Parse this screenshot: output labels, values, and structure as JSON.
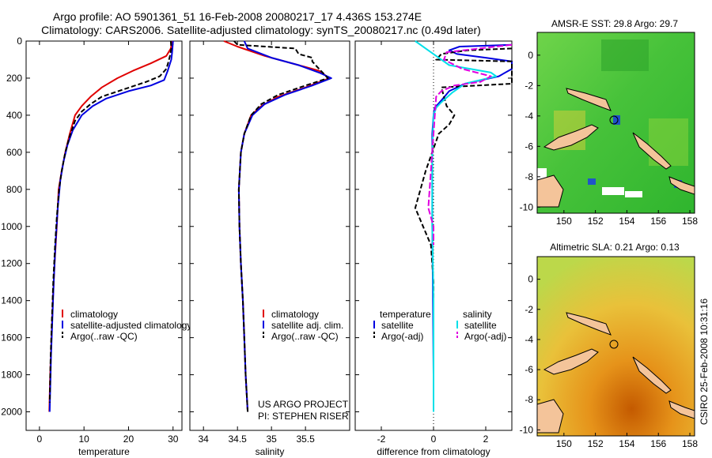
{
  "header": {
    "line1": "Argo profile: AO 5901361_51 16-Feb-2008 20080217_17 4.436S 153.274E",
    "line2": "Climatology: CARS2006. Satellite-adjusted climatology: synTS_20080217.nc (0.49d later)"
  },
  "side_label": "CSIRO 25-Feb-2008 10:31:16",
  "project": {
    "line1": "US ARGO PROJECT",
    "line2": "PI: STEPHEN RISER"
  },
  "colors": {
    "climatology": "#e00000",
    "satellite": "#0000e0",
    "argo": "#000000",
    "cyan": "#00e0e8",
    "magenta": "#e000e0"
  },
  "chart_data": [
    {
      "id": "temperature",
      "type": "line",
      "xlabel": "temperature",
      "xlim": [
        -3,
        32
      ],
      "ylim": [
        0,
        2100
      ],
      "xticks": [
        0,
        10,
        20,
        30
      ],
      "yticks": [
        0,
        200,
        400,
        600,
        800,
        1000,
        1200,
        1400,
        1600,
        1800,
        2000
      ],
      "series": [
        {
          "name": "climatology",
          "color": "#e00000",
          "dash": "",
          "points": [
            [
              29.8,
              0
            ],
            [
              29.5,
              40
            ],
            [
              28.5,
              80
            ],
            [
              25,
              120
            ],
            [
              21,
              160
            ],
            [
              17.5,
              200
            ],
            [
              14,
              250
            ],
            [
              11.5,
              300
            ],
            [
              9.5,
              350
            ],
            [
              8,
              400
            ],
            [
              6.8,
              500
            ],
            [
              5.8,
              600
            ],
            [
              5,
              700
            ],
            [
              4.3,
              800
            ],
            [
              3.9,
              1000
            ],
            [
              3.4,
              1200
            ],
            [
              3,
              1400
            ],
            [
              2.7,
              1600
            ],
            [
              2.4,
              1800
            ],
            [
              2.2,
              2000
            ]
          ]
        },
        {
          "name": "satellite-adjusted climatology",
          "color": "#0000e0",
          "dash": "",
          "points": [
            [
              30,
              0
            ],
            [
              29.8,
              60
            ],
            [
              29.6,
              100
            ],
            [
              28.8,
              160
            ],
            [
              28,
              210
            ],
            [
              25,
              240
            ],
            [
              20,
              270
            ],
            [
              15,
              310
            ],
            [
              12,
              350
            ],
            [
              9.5,
              400
            ],
            [
              7.5,
              480
            ],
            [
              6.3,
              560
            ],
            [
              5.4,
              650
            ],
            [
              4.7,
              750
            ],
            [
              4.1,
              900
            ],
            [
              3.6,
              1100
            ],
            [
              3.2,
              1300
            ],
            [
              2.9,
              1500
            ],
            [
              2.6,
              1700
            ],
            [
              2.3,
              2000
            ]
          ]
        },
        {
          "name": "Argo(..raw -QC)",
          "color": "#000000",
          "dash": "6,3",
          "points": [
            [
              29.5,
              0
            ],
            [
              29.6,
              40
            ],
            [
              29.3,
              80
            ],
            [
              29,
              110
            ],
            [
              28.5,
              150
            ],
            [
              27,
              190
            ],
            [
              24,
              220
            ],
            [
              19,
              260
            ],
            [
              14,
              300
            ],
            [
              11.5,
              340
            ],
            [
              9.5,
              380
            ],
            [
              8,
              430
            ],
            [
              6.7,
              520
            ],
            [
              5.8,
              600
            ],
            [
              5,
              700
            ],
            [
              4.4,
              800
            ],
            [
              3.9,
              950
            ],
            [
              3.5,
              1100
            ],
            [
              3.1,
              1300
            ],
            [
              2.8,
              1500
            ],
            [
              2.5,
              1700
            ],
            [
              2.3,
              1950
            ]
          ]
        }
      ],
      "legend": [
        "climatology",
        "satellite-adjusted climatology",
        "Argo(..raw -QC)"
      ]
    },
    {
      "id": "salinity",
      "type": "line",
      "xlabel": "salinity",
      "xlim": [
        33.8,
        36.15
      ],
      "ylim": [
        0,
        2100
      ],
      "xticks": [
        34,
        34.5,
        35,
        35.5
      ],
      "xticklabels": [
        "34",
        "34.5",
        "35",
        "35.5"
      ],
      "series": [
        {
          "name": "climatology",
          "color": "#e00000",
          "dash": "",
          "points": [
            [
              34.3,
              0
            ],
            [
              34.5,
              30
            ],
            [
              34.9,
              80
            ],
            [
              35.4,
              130
            ],
            [
              35.7,
              160
            ],
            [
              35.85,
              200
            ],
            [
              35.5,
              250
            ],
            [
              35.1,
              300
            ],
            [
              34.85,
              350
            ],
            [
              34.7,
              400
            ],
            [
              34.6,
              500
            ],
            [
              34.55,
              600
            ],
            [
              34.52,
              800
            ],
            [
              34.53,
              1000
            ],
            [
              34.55,
              1200
            ],
            [
              34.58,
              1400
            ],
            [
              34.6,
              1600
            ],
            [
              34.62,
              1800
            ],
            [
              34.65,
              2000
            ]
          ]
        },
        {
          "name": "satellite adj. clim.",
          "color": "#0000e0",
          "dash": "",
          "points": [
            [
              34.6,
              0
            ],
            [
              34.65,
              40
            ],
            [
              35,
              90
            ],
            [
              35.4,
              130
            ],
            [
              35.7,
              170
            ],
            [
              35.88,
              200
            ],
            [
              35.6,
              240
            ],
            [
              35.2,
              290
            ],
            [
              34.9,
              340
            ],
            [
              34.72,
              400
            ],
            [
              34.6,
              500
            ],
            [
              34.55,
              600
            ],
            [
              34.52,
              800
            ],
            [
              34.53,
              1000
            ],
            [
              34.55,
              1200
            ],
            [
              34.58,
              1400
            ],
            [
              34.6,
              1600
            ],
            [
              34.62,
              1800
            ],
            [
              34.65,
              2000
            ]
          ]
        },
        {
          "name": "Argo(..raw -QC)",
          "color": "#000000",
          "dash": "6,3",
          "points": [
            [
              34.45,
              0
            ],
            [
              34.5,
              20
            ],
            [
              35.35,
              40
            ],
            [
              35.4,
              70
            ],
            [
              35.6,
              90
            ],
            [
              35.6,
              110
            ],
            [
              35.7,
              150
            ],
            [
              35.83,
              200
            ],
            [
              35.5,
              240
            ],
            [
              35.1,
              290
            ],
            [
              34.85,
              340
            ],
            [
              34.7,
              400
            ],
            [
              34.6,
              500
            ],
            [
              34.55,
              600
            ],
            [
              34.52,
              800
            ],
            [
              34.53,
              1000
            ],
            [
              34.55,
              1200
            ],
            [
              34.58,
              1400
            ],
            [
              34.6,
              1600
            ],
            [
              34.62,
              1800
            ],
            [
              34.65,
              2000
            ]
          ]
        }
      ],
      "legend": [
        "climatology",
        "satellite adj. clim.",
        "Argo(..raw -QC)"
      ]
    },
    {
      "id": "difference",
      "type": "line",
      "xlabel": "difference from climatology",
      "xlim": [
        -3,
        3
      ],
      "ylim": [
        0,
        2100
      ],
      "xticks": [
        -2,
        0,
        2
      ],
      "series": [
        {
          "name": "temperature satellite",
          "color": "#0000e0",
          "dash": "",
          "points": [
            [
              3,
              20
            ],
            [
              1,
              30
            ],
            [
              0.6,
              50
            ],
            [
              0.9,
              70
            ],
            [
              2,
              90
            ],
            [
              3,
              110
            ],
            [
              3,
              150
            ],
            [
              2.5,
              190
            ],
            [
              1.2,
              230
            ],
            [
              0.6,
              270
            ],
            [
              0.3,
              320
            ],
            [
              0.05,
              360
            ],
            [
              0,
              400
            ],
            [
              -0.05,
              500
            ],
            [
              -0.05,
              700
            ],
            [
              -0.05,
              1000
            ],
            [
              -0.02,
              1400
            ],
            [
              0,
              1800
            ],
            [
              0,
              2000
            ]
          ]
        },
        {
          "name": "temperature Argo(-adj)",
          "color": "#000000",
          "dash": "6,3",
          "points": [
            [
              3,
              40
            ],
            [
              1.3,
              50
            ],
            [
              0.3,
              70
            ],
            [
              0.1,
              100
            ],
            [
              3,
              110
            ],
            [
              3,
              230
            ],
            [
              0.3,
              250
            ],
            [
              0.5,
              350
            ],
            [
              0.8,
              400
            ],
            [
              0.6,
              450
            ],
            [
              0.2,
              500
            ],
            [
              -0.3,
              700
            ],
            [
              -0.7,
              900
            ],
            [
              -0.4,
              1000
            ],
            [
              -0.1,
              1100
            ],
            [
              0,
              1300
            ],
            [
              0,
              1600
            ],
            [
              0,
              2000
            ]
          ]
        },
        {
          "name": "salinity satellite",
          "color": "#00e0e8",
          "dash": "",
          "points": [
            [
              -0.7,
              0
            ],
            [
              -0.3,
              40
            ],
            [
              0.1,
              80
            ],
            [
              0.6,
              130
            ],
            [
              2.2,
              170
            ],
            [
              2.4,
              190
            ],
            [
              1.2,
              230
            ],
            [
              0.7,
              280
            ],
            [
              0.3,
              330
            ],
            [
              0.1,
              360
            ],
            [
              0,
              400
            ],
            [
              -0.05,
              600
            ],
            [
              -0.05,
              1000
            ],
            [
              0,
              1400
            ],
            [
              0,
              2000
            ]
          ]
        },
        {
          "name": "salinity Argo(-adj)",
          "color": "#e000e0",
          "dash": "8,3",
          "points": [
            [
              3,
              20
            ],
            [
              0.5,
              60
            ],
            [
              0.4,
              100
            ],
            [
              1.1,
              150
            ],
            [
              2.2,
              190
            ],
            [
              1.8,
              220
            ],
            [
              0.8,
              240
            ],
            [
              0.3,
              270
            ],
            [
              0.1,
              300
            ],
            [
              -0.1,
              700
            ],
            [
              -0.2,
              900
            ],
            [
              0,
              1000
            ],
            [
              0,
              1100
            ]
          ]
        }
      ],
      "legend": [
        "temperature",
        "satellite",
        "Argo(-adj)",
        "salinity",
        "satellite",
        "Argo(-adj)"
      ]
    }
  ],
  "maps": [
    {
      "id": "sst",
      "title": "AMSR-E SST: 29.8 Argo: 29.7",
      "xticks": [
        "150",
        "152",
        "154",
        "156",
        "158"
      ],
      "yticks": [
        "0",
        "-2",
        "-4",
        "-6",
        "-8",
        "-10"
      ],
      "xlim": [
        148.3,
        158.3
      ],
      "ylim": [
        -10.4,
        1.5
      ],
      "profile_location": [
        153.274,
        -4.436
      ]
    },
    {
      "id": "sla",
      "title": "Altimetric SLA: 0.21 Argo: 0.13",
      "xticks": [
        "150",
        "152",
        "154",
        "156",
        "158"
      ],
      "yticks": [
        "0",
        "-2",
        "-4",
        "-6",
        "-8",
        "-10"
      ],
      "xlim": [
        148.3,
        158.3
      ],
      "ylim": [
        -10.4,
        1.5
      ],
      "profile_location": [
        153.274,
        -4.436
      ]
    }
  ]
}
